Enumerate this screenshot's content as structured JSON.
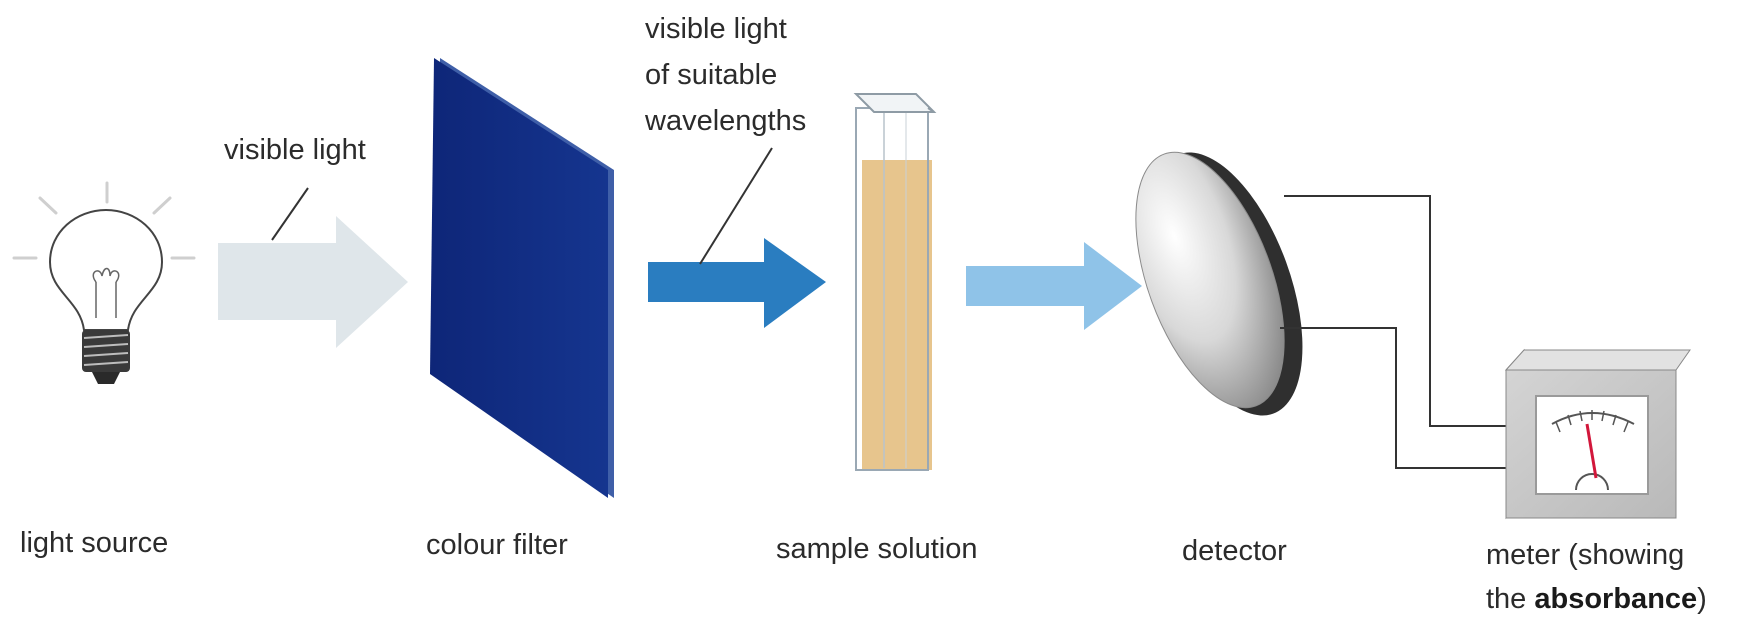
{
  "labels": {
    "light_source": "light source",
    "colour_filter": "colour filter",
    "sample_solution": "sample solution",
    "detector": "detector",
    "meter_line1": "meter (showing",
    "meter_line2_pre": "the ",
    "meter_line2_bold": "absorbance",
    "meter_line2_post": ")"
  },
  "callouts": {
    "visible_light": "visible light",
    "suitable_line1": "visible light",
    "suitable_line2": "of suitable",
    "suitable_line3": "wavelengths"
  },
  "colors": {
    "beam_white_light": "#dfe6ea",
    "beam_filtered": "#2a7dc0",
    "beam_transmitted": "#8fc3e8",
    "filter": "#0f2a80",
    "solution": "#e7c58d",
    "needle": "#d2173b"
  },
  "icons": [
    "light-bulb-icon",
    "meter-icon"
  ]
}
